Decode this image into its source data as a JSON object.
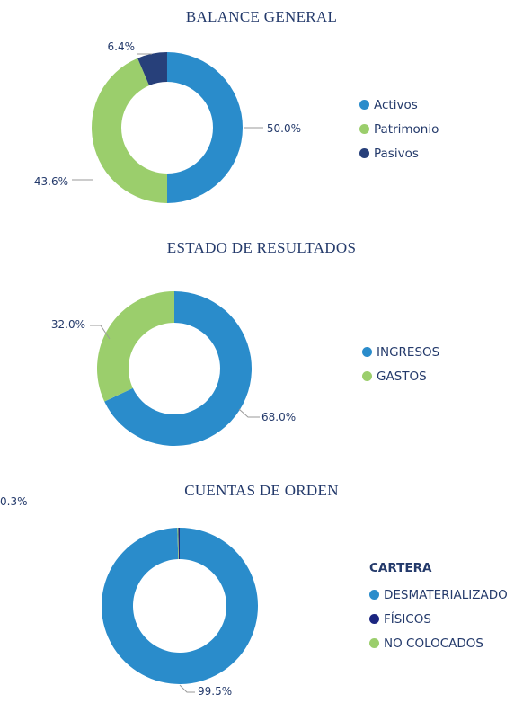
{
  "colors": {
    "blue": "#2a8ccb",
    "green": "#9bce6c",
    "navy": "#27407a",
    "dark_navy": "#1b2580",
    "title": "#243a6b",
    "leader": "#9a9a9a"
  },
  "chart_data": [
    {
      "type": "pie",
      "title": "BALANCE GENERAL",
      "legend_position": "right",
      "slices": [
        {
          "name": "Activos",
          "value": 50.0,
          "label": "50.0%",
          "color": "#2a8ccb"
        },
        {
          "name": "Patrimonio",
          "value": 43.6,
          "label": "43.6%",
          "color": "#9bce6c"
        },
        {
          "name": "Pasivos",
          "value": 6.4,
          "label": "6.4%",
          "color": "#27407a"
        }
      ]
    },
    {
      "type": "pie",
      "title": "ESTADO DE RESULTADOS",
      "legend_position": "right",
      "slices": [
        {
          "name": "INGRESOS",
          "value": 68.0,
          "label": "68.0%",
          "color": "#2a8ccb"
        },
        {
          "name": "GASTOS",
          "value": 32.0,
          "label": "32.0%",
          "color": "#9bce6c"
        }
      ]
    },
    {
      "type": "pie",
      "title": "CUENTAS DE ORDEN",
      "legend_title": "CARTERA",
      "legend_position": "right",
      "slices": [
        {
          "name": "DESMATERIALIZADO",
          "value": 99.5,
          "label": "99.5%",
          "color": "#2a8ccb"
        },
        {
          "name": "FÍSICOS",
          "value": 0.3,
          "label": "0.3%",
          "color": "#1b2580"
        },
        {
          "name": "NO COLOCADOS",
          "value": 0.2,
          "label": "",
          "color": "#9bce6c"
        }
      ]
    }
  ]
}
